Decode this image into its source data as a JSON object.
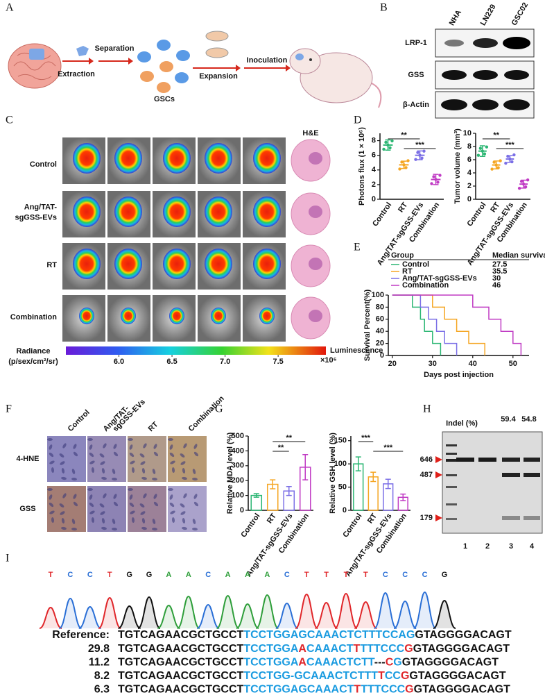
{
  "panel_labels": [
    "A",
    "B",
    "C",
    "D",
    "E",
    "F",
    "G",
    "H",
    "I"
  ],
  "panel_a": {
    "steps": [
      "Extraction",
      "Separation",
      "Expansion",
      "Inoculation"
    ],
    "cells_label": "GSCs"
  },
  "panel_b": {
    "columns": [
      "NHA",
      "LN229",
      "GSC02"
    ],
    "rows": [
      "LRP-1",
      "GSS",
      "β-Actin"
    ]
  },
  "panel_c": {
    "title": "H&E",
    "rows": [
      [
        "Control"
      ],
      [
        "Ang/TAT-",
        "sgGSS-EVs"
      ],
      [
        "RT"
      ],
      [
        "Combination"
      ]
    ],
    "colorbar": {
      "label_lines": [
        "Radiance",
        "(p/sex/cm²/sr)"
      ],
      "name": "Luminescence",
      "lim": [
        5.5,
        7.95
      ],
      "ticks": [
        {
          "value": 6,
          "label": "6.0"
        },
        {
          "value": 6.5,
          "label": "6.5"
        },
        {
          "value": 7,
          "label": "7.0"
        },
        {
          "value": 7.5,
          "label": "7.5"
        }
      ],
      "multiplier": "×10⁶"
    }
  },
  "chart_data": [
    {
      "type": "dot",
      "ylabel": "Photons flux (1 × 10⁶)",
      "categories": [
        "Control",
        "RT",
        "Ang/TAT-sgGSS-EVs",
        "Combination"
      ],
      "values": [
        7.4,
        4.7,
        6.0,
        2.7
      ],
      "errors": [
        0.7,
        0.5,
        0.6,
        0.7
      ],
      "colors": [
        "#2bb673",
        "#f5a623",
        "#7b6fe6",
        "#c03bc4"
      ],
      "ylim": [
        0,
        9
      ],
      "yticks": [
        0,
        2,
        4,
        6,
        8
      ],
      "annotations": [
        "**",
        "***"
      ]
    },
    {
      "type": "dot",
      "ylabel": "Tumor volume (mm³)",
      "categories": [
        "Control",
        "RT",
        "Ang/TAT-sgGSS-EVs",
        "Combination"
      ],
      "values": [
        7.3,
        5.2,
        6.1,
        2.3
      ],
      "errors": [
        0.8,
        0.6,
        0.5,
        0.6
      ],
      "colors": [
        "#2bb673",
        "#f5a623",
        "#7b6fe6",
        "#c03bc4"
      ],
      "ylim": [
        0,
        10
      ],
      "yticks": [
        0,
        2,
        4,
        6,
        8,
        10
      ],
      "annotations": [
        "**",
        "***"
      ]
    },
    {
      "type": "survival",
      "ylabel": "Survival Percent(%)",
      "xlabel": "Days post injection",
      "table_header": [
        "Group",
        "Median survival"
      ],
      "series": [
        {
          "name": "Control",
          "color": "#2bb673",
          "median": 27.5,
          "x": [
            20,
            25,
            27,
            28,
            30,
            32
          ],
          "values": [
            100,
            80,
            60,
            40,
            20,
            0
          ]
        },
        {
          "name": "RT",
          "color": "#f5a623",
          "median": 35.5,
          "x": [
            20,
            30,
            33,
            36,
            39,
            43
          ],
          "values": [
            100,
            80,
            60,
            40,
            20,
            0
          ]
        },
        {
          "name": "Ang/TAT-sgGSS-EVs",
          "color": "#7b6fe6",
          "median": 30,
          "x": [
            20,
            27,
            29,
            31,
            33,
            36
          ],
          "values": [
            100,
            80,
            60,
            40,
            20,
            0
          ]
        },
        {
          "name": "Combination",
          "color": "#c03bc4",
          "median": 46,
          "x": [
            20,
            40,
            44,
            47,
            50,
            52
          ],
          "values": [
            100,
            80,
            60,
            40,
            20,
            0
          ]
        }
      ],
      "xlim": [
        19,
        54
      ],
      "xticks": [
        20,
        30,
        40,
        50
      ],
      "ylim": [
        0,
        100
      ],
      "yticks": [
        0,
        20,
        40,
        60,
        80,
        100
      ]
    },
    {
      "type": "bar",
      "ylabel": "Relative MDA level (%)",
      "categories": [
        "Control",
        "RT",
        "Ang/TAT-sgGSS-EVs",
        "Combination"
      ],
      "values": [
        100,
        175,
        130,
        290
      ],
      "errors": [
        12,
        30,
        30,
        85
      ],
      "colors": [
        "#2bb673",
        "#f5a623",
        "#7b6fe6",
        "#c03bc4"
      ],
      "ylim": [
        0,
        500
      ],
      "yticks": [
        0,
        100,
        200,
        300,
        400,
        500
      ],
      "annotations": [
        "**",
        "**"
      ]
    },
    {
      "type": "bar",
      "ylabel": "Relative GSH level (%)",
      "categories": [
        "Control",
        "RT",
        "Ang/TAT-sgGSS-EVs",
        "Combination"
      ],
      "values": [
        100,
        72,
        57,
        28
      ],
      "errors": [
        15,
        10,
        10,
        7
      ],
      "colors": [
        "#2bb673",
        "#f5a623",
        "#7b6fe6",
        "#c03bc4"
      ],
      "ylim": [
        0,
        160
      ],
      "yticks": [
        0,
        50,
        100,
        150
      ],
      "annotations": [
        "***",
        "***"
      ]
    }
  ],
  "panel_f": {
    "columns": [
      [
        "Control"
      ],
      [
        "Ang/TAT-",
        "sgGSS-EVs"
      ],
      [
        "RT"
      ],
      [
        "Combination"
      ]
    ],
    "rows": [
      "4-HNE",
      "GSS"
    ]
  },
  "panel_h": {
    "title": "Indel (%)",
    "lanes": [
      1,
      2,
      3,
      4
    ],
    "indels": [
      null,
      null,
      59.4,
      54.8
    ],
    "markers": [
      646,
      487,
      179
    ]
  },
  "panel_i": {
    "bases": [
      "T",
      "C",
      "C",
      "T",
      "G",
      "G",
      "A",
      "A",
      "C",
      "A",
      "A",
      "A",
      "C",
      "T",
      "T",
      "T",
      "T",
      "C",
      "C",
      "C",
      "G"
    ],
    "base_colors": {
      "A": "#2e9e3a",
      "C": "#2a6fd6",
      "G": "#111111",
      "T": "#e0262a"
    },
    "reference_label": "Reference:",
    "reference": [
      {
        "text": "TGTCAGAACGCTGCCT",
        "color": "#111111"
      },
      {
        "text": "TCCTGGAGCAAACTCTTTCCAG",
        "color": "#1a9be0"
      },
      {
        "text": "GTAGGGGACAGT",
        "color": "#111111"
      }
    ],
    "alleles": [
      {
        "percent": 29.8,
        "segments": [
          {
            "text": "TGTCAGAACGCTGCCT",
            "color": "#111111"
          },
          {
            "text": "TCCTGGA",
            "color": "#1a9be0"
          },
          {
            "text": "A",
            "color": "#e0262a"
          },
          {
            "text": "CAAACT",
            "color": "#1a9be0"
          },
          {
            "text": "T",
            "color": "#e0262a"
          },
          {
            "text": "TTTCCC",
            "color": "#1a9be0"
          },
          {
            "text": "G",
            "color": "#e0262a"
          },
          {
            "text": "GTAGGGGACAGT",
            "color": "#111111"
          }
        ]
      },
      {
        "percent": 11.2,
        "segments": [
          {
            "text": "TGTCAGAACGCTGCCT",
            "color": "#111111"
          },
          {
            "text": "TCCTGGA",
            "color": "#1a9be0"
          },
          {
            "text": "A",
            "color": "#e0262a"
          },
          {
            "text": "CAAACTCTT",
            "color": "#1a9be0"
          },
          {
            "text": "---",
            "color": "#111111"
          },
          {
            "text": "C",
            "color": "#e0262a"
          },
          {
            "text": "G",
            "color": "#1a9be0"
          },
          {
            "text": "GTAGGGGACAGT",
            "color": "#111111"
          }
        ]
      },
      {
        "percent": 8.2,
        "segments": [
          {
            "text": "TGTCAGAACGCTGCCT",
            "color": "#111111"
          },
          {
            "text": "TCCTGG-GCAAACTCTTT",
            "color": "#1a9be0"
          },
          {
            "text": "T",
            "color": "#e0262a"
          },
          {
            "text": "CC",
            "color": "#1a9be0"
          },
          {
            "text": "G",
            "color": "#e0262a"
          },
          {
            "text": "GTAGGGGACAGT",
            "color": "#111111"
          }
        ]
      },
      {
        "percent": 6.3,
        "segments": [
          {
            "text": "TGTCAGAACGCTGCCT",
            "color": "#111111"
          },
          {
            "text": "TCCTGGAGCAAACT",
            "color": "#1a9be0"
          },
          {
            "text": "T",
            "color": "#e0262a"
          },
          {
            "text": "TTTCCC",
            "color": "#1a9be0"
          },
          {
            "text": "G",
            "color": "#e0262a"
          },
          {
            "text": "GTAGGGGACAGT",
            "color": "#111111"
          }
        ]
      }
    ]
  }
}
